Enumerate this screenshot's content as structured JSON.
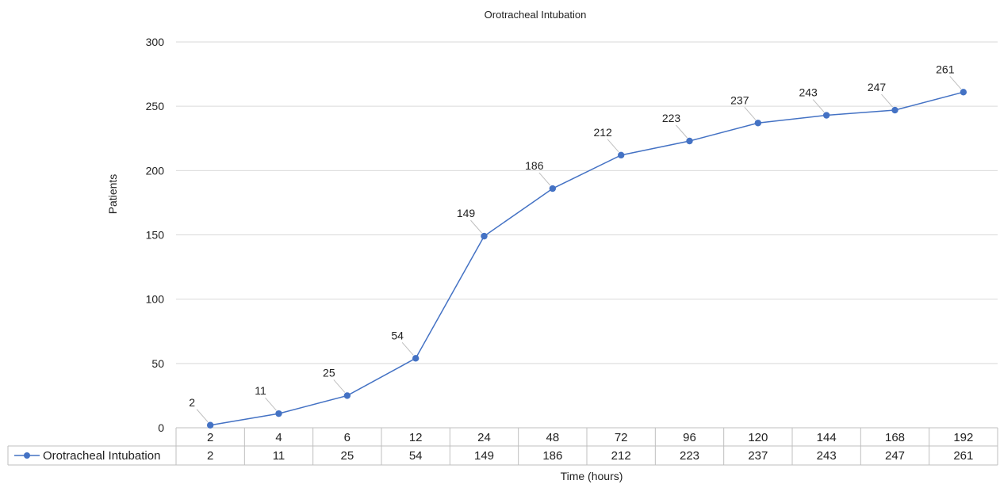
{
  "chart_data": {
    "type": "line",
    "title": "Orotracheal Intubation",
    "xlabel": "Time (hours)",
    "ylabel": "Patients",
    "categories": [
      "2",
      "4",
      "6",
      "12",
      "24",
      "48",
      "72",
      "96",
      "120",
      "144",
      "168",
      "192"
    ],
    "series": [
      {
        "name": "Orotracheal Intubation",
        "values": [
          2,
          11,
          25,
          54,
          149,
          186,
          212,
          223,
          237,
          243,
          247,
          261
        ],
        "color": "#4472c4"
      }
    ],
    "ylim": [
      0,
      300
    ],
    "yticks": [
      0,
      50,
      100,
      150,
      200,
      250,
      300
    ],
    "grid": true,
    "legend": "data-table",
    "data_labels": true
  }
}
